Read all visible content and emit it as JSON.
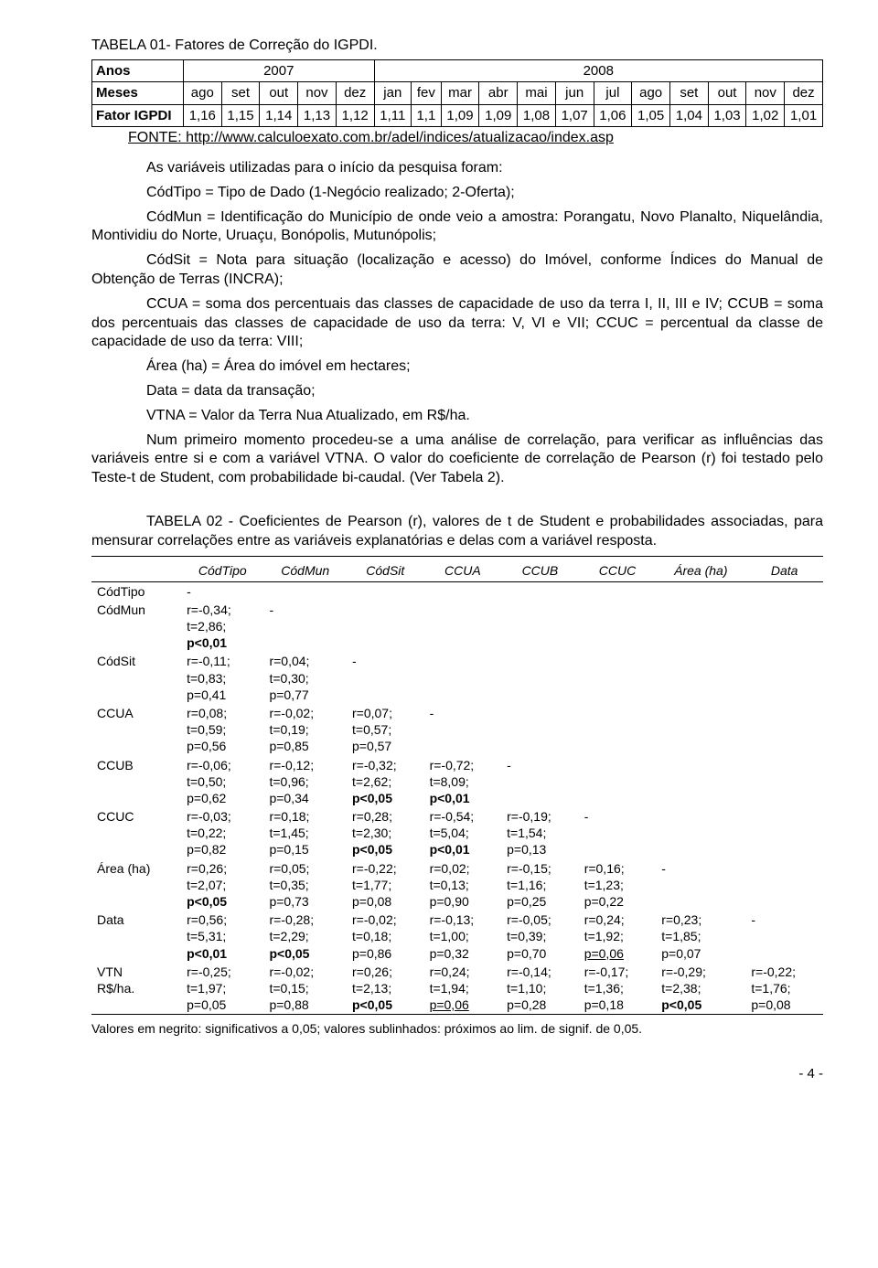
{
  "table1": {
    "title": "TABELA 01- Fatores de Correção do IGPDI.",
    "year_row": {
      "label": "Anos",
      "y2007": "2007",
      "y2008": "2008"
    },
    "month_row": {
      "label": "Meses",
      "months": [
        "ago",
        "set",
        "out",
        "nov",
        "dez",
        "jan",
        "fev",
        "mar",
        "abr",
        "mai",
        "jun",
        "jul",
        "ago",
        "set",
        "out",
        "nov",
        "dez"
      ]
    },
    "value_row": {
      "label": "Fator IGPDI",
      "values": [
        "1,16",
        "1,15",
        "1,14",
        "1,13",
        "1,12",
        "1,11",
        "1,1",
        "1,09",
        "1,09",
        "1,08",
        "1,07",
        "1,06",
        "1,05",
        "1,04",
        "1,03",
        "1,02",
        "1,01"
      ]
    },
    "fonte": "FONTE: http://www.calculoexato.com.br/adel/indices/atualizacao/index.asp"
  },
  "para1a": "As variáveis utilizadas para o início da pesquisa foram:",
  "para1b": "CódTipo = Tipo de Dado (1-Negócio realizado; 2-Oferta);",
  "para1c": "CódMun = Identificação do Município de onde veio a amostra: Porangatu, Novo Planalto, Niquelândia, Montividiu do Norte, Uruaçu, Bonópolis, Mutunópolis;",
  "para1d": "CódSit = Nota para situação (localização e acesso) do Imóvel, conforme Índices do Manual de Obtenção de Terras (INCRA);",
  "para1e": "CCUA = soma dos percentuais das classes de capacidade de uso da terra I, II, III e IV; CCUB = soma dos percentuais das classes de capacidade de uso da terra: V, VI e VII; CCUC = percentual da classe de capacidade de uso da terra: VIII;",
  "para1f": "Área (ha) = Área do imóvel em hectares;",
  "para1g": "Data = data da transação;",
  "para1h": "VTNA = Valor da Terra Nua Atualizado, em R$/ha.",
  "para2": "Num primeiro momento procedeu-se a uma análise de correlação, para verificar as influências das variáveis entre si e com a variável VTNA. O valor do coeficiente de correlação de Pearson (r) foi testado pelo Teste-t de Student, com probabilidade bi-caudal. (Ver Tabela 2).",
  "table2": {
    "title": "TABELA 02 - Coeficientes de Pearson (r), valores de t de Student e probabilidades associadas, para mensurar correlações entre as variáveis explanatórias e delas com a variável resposta.",
    "headers": [
      "CódTipo",
      "CódMun",
      "CódSit",
      "CCUA",
      "CCUB",
      "CCUC",
      "Área (ha)",
      "Data"
    ],
    "rows": [
      {
        "label": "CódTipo",
        "cells": [
          {
            "t": "-"
          }
        ]
      },
      {
        "label": "CódMun",
        "cells": [
          {
            "t": "r=-0,34;\nt=2,86;\np<0,01",
            "bold": true
          },
          {
            "t": "-"
          }
        ]
      },
      {
        "label": "CódSit",
        "cells": [
          {
            "t": "r=-0,11;\nt=0,83;\np=0,41"
          },
          {
            "t": "r=0,04;\nt=0,30;\np=0,77"
          },
          {
            "t": "-"
          }
        ]
      },
      {
        "label": "CCUA",
        "cells": [
          {
            "t": "r=0,08;\nt=0,59;\np=0,56"
          },
          {
            "t": "r=-0,02;\nt=0,19;\np=0,85"
          },
          {
            "t": "r=0,07;\nt=0,57;\np=0,57"
          },
          {
            "t": "-"
          }
        ]
      },
      {
        "label": "CCUB",
        "cells": [
          {
            "t": "r=-0,06;\nt=0,50;\np=0,62"
          },
          {
            "t": "r=-0,12;\nt=0,96;\np=0,34"
          },
          {
            "t": "r=-0,32;\nt=2,62;\np<0,05",
            "bold": true
          },
          {
            "t": "r=-0,72;\nt=8,09;\np<0,01",
            "bold": true
          },
          {
            "t": "-"
          }
        ]
      },
      {
        "label": "CCUC",
        "cells": [
          {
            "t": "r=-0,03;\nt=0,22;\np=0,82"
          },
          {
            "t": "r=0,18;\nt=1,45;\np=0,15"
          },
          {
            "t": "r=0,28;\nt=2,30;\np<0,05",
            "bold": true
          },
          {
            "t": "r=-0,54;\nt=5,04;\np<0,01",
            "bold": true
          },
          {
            "t": "r=-0,19;\nt=1,54;\np=0,13"
          },
          {
            "t": "-"
          }
        ]
      },
      {
        "label": "Área (ha)",
        "cells": [
          {
            "t": "r=0,26;\nt=2,07;\np<0,05",
            "bold": true
          },
          {
            "t": "r=0,05;\nt=0,35;\np=0,73"
          },
          {
            "t": "r=-0,22;\nt=1,77;\np=0,08"
          },
          {
            "t": "r=0,02;\nt=0,13;\np=0,90"
          },
          {
            "t": "r=-0,15;\nt=1,16;\np=0,25"
          },
          {
            "t": "r=0,16;\nt=1,23;\np=0,22"
          },
          {
            "t": "-"
          }
        ]
      },
      {
        "label": "Data",
        "cells": [
          {
            "t": "r=0,56;\nt=5,31;\np<0,01",
            "bold": true
          },
          {
            "t": "r=-0,28;\nt=2,29;\np<0,05",
            "bold": true
          },
          {
            "t": "r=-0,02;\nt=0,18;\np=0,86"
          },
          {
            "t": "r=-0,13;\nt=1,00;\np=0,32"
          },
          {
            "t": "r=-0,05;\nt=0,39;\np=0,70"
          },
          {
            "t": "r=0,24;\nt=1,92;\np=0,06",
            "uline": true
          },
          {
            "t": "r=0,23;\nt=1,85;\np=0,07"
          },
          {
            "t": "-"
          }
        ]
      },
      {
        "label": "VTN\nR$/ha.",
        "cells": [
          {
            "t": "r=-0,25;\nt=1,97;\np=0,05"
          },
          {
            "t": "r=-0,02;\nt=0,15;\np=0,88"
          },
          {
            "t": "r=0,26;\nt=2,13;\np<0,05",
            "bold": true
          },
          {
            "t": "r=0,24;\nt=1,94;\np=0,06",
            "uline": true
          },
          {
            "t": "r=-0,14;\nt=1,10;\np=0,28"
          },
          {
            "t": "r=-0,17;\nt=1,36;\np=0,18"
          },
          {
            "t": "r=-0,29;\nt=2,38;\np<0,05",
            "bold": true
          },
          {
            "t": "r=-0,22;\nt=1,76;\np=0,08"
          }
        ]
      }
    ],
    "footnote": "Valores em negrito: significativos a 0,05; valores sublinhados: próximos ao lim. de signif. de 0,05."
  },
  "page": "- 4 -"
}
